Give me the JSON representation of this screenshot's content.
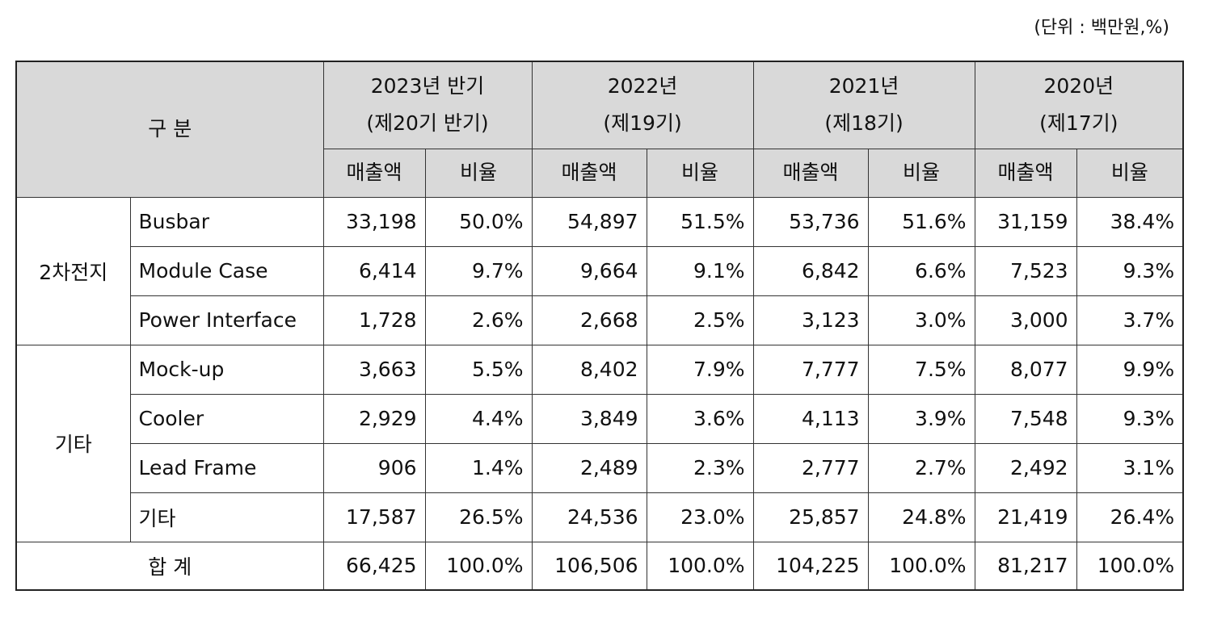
{
  "unit": "(단위 : 백만원,%)",
  "table": {
    "header": {
      "category": "구 분",
      "periods": [
        {
          "year": "2023년 반기",
          "term": "(제20기 반기)"
        },
        {
          "year": "2022년",
          "term": "(제19기)"
        },
        {
          "year": "2021년",
          "term": "(제18기)"
        },
        {
          "year": "2020년",
          "term": "(제17기)"
        }
      ],
      "sub_columns": [
        "매출액",
        "비율",
        "매출액",
        "비율",
        "매출액",
        "비율",
        "매출액",
        "비율"
      ]
    },
    "groups": [
      {
        "name": "2차전지",
        "rows": [
          {
            "item": "Busbar",
            "cells": [
              "33,198",
              "50.0%",
              "54,897",
              "51.5%",
              "53,736",
              "51.6%",
              "31,159",
              "38.4%"
            ]
          },
          {
            "item": "Module Case",
            "cells": [
              "6,414",
              "9.7%",
              "9,664",
              "9.1%",
              "6,842",
              "6.6%",
              "7,523",
              "9.3%"
            ]
          },
          {
            "item": "Power Interface",
            "cells": [
              "1,728",
              "2.6%",
              "2,668",
              "2.5%",
              "3,123",
              "3.0%",
              "3,000",
              "3.7%"
            ]
          }
        ]
      },
      {
        "name": "기타",
        "rows": [
          {
            "item": "Mock-up",
            "cells": [
              "3,663",
              "5.5%",
              "8,402",
              "7.9%",
              "7,777",
              "7.5%",
              "8,077",
              "9.9%"
            ]
          },
          {
            "item": "Cooler",
            "cells": [
              "2,929",
              "4.4%",
              "3,849",
              "3.6%",
              "4,113",
              "3.9%",
              "7,548",
              "9.3%"
            ]
          },
          {
            "item": "Lead Frame",
            "cells": [
              "906",
              "1.4%",
              "2,489",
              "2.3%",
              "2,777",
              "2.7%",
              "2,492",
              "3.1%"
            ]
          },
          {
            "item": "기타",
            "cells": [
              "17,587",
              "26.5%",
              "24,536",
              "23.0%",
              "25,857",
              "24.8%",
              "21,419",
              "26.4%"
            ]
          }
        ]
      }
    ],
    "total": {
      "label": "합 계",
      "cells": [
        "66,425",
        "100.0%",
        "106,506",
        "100.0%",
        "104,225",
        "100.0%",
        "81,217",
        "100.0%"
      ]
    }
  }
}
